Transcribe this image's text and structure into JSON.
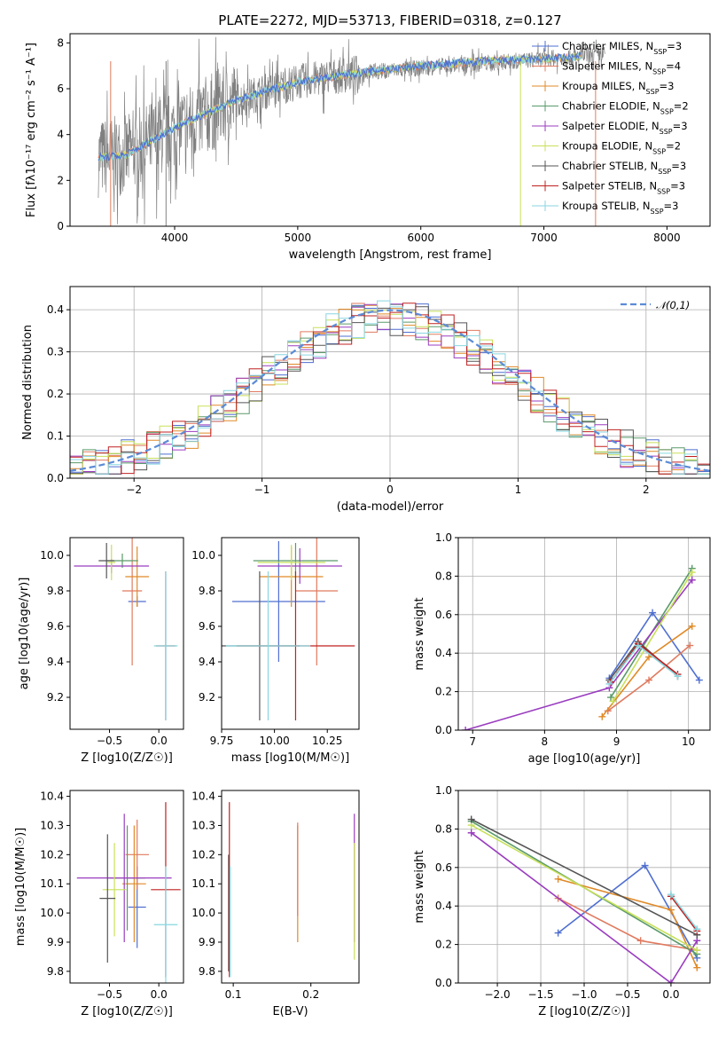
{
  "title": "PLATE=2272, MJD=53713, FIBERID=0318, z=0.127",
  "colors": {
    "Chabrier MILES": "#4f6fd1",
    "Salpeter MILES": "#e07a5f",
    "Kroupa MILES": "#e08a28",
    "Chabrier ELODIE": "#5a9a6a",
    "Salpeter ELODIE": "#9a3dbf",
    "Kroupa ELODIE": "#c8e05a",
    "Chabrier STELIB": "#555555",
    "Salpeter STELIB": "#c02020",
    "Kroupa STELIB": "#88d6e0",
    "data": "#808080",
    "gaussian": "#5b8bd6"
  },
  "chart_data": [
    {
      "id": "spectrum",
      "type": "line",
      "xlabel": "wavelength [Angstrom, rest frame]",
      "ylabel": "Flux [fλ10⁻¹⁷ erg cm⁻² s⁻¹ A⁻¹]",
      "xlim": [
        3150,
        8350
      ],
      "ylim": [
        0,
        8.4
      ],
      "xticks": [
        4000,
        5000,
        6000,
        7000,
        8000
      ],
      "yticks": [
        0,
        2,
        4,
        6,
        8
      ],
      "legend": [
        "Chabrier MILES, N_SSP=3",
        "Salpeter MILES, N_SSP=4",
        "Kroupa MILES, N_SSP=3",
        "Chabrier ELODIE, N_SSP=2",
        "Salpeter ELODIE, N_SSP=3",
        "Kroupa ELODIE, N_SSP=2",
        "Chabrier STELIB, N_SSP=3",
        "Salpeter STELIB, N_SSP=3",
        "Kroupa STELIB, N_SSP=3"
      ],
      "legend_position": "upper-right",
      "data_flux": {
        "x": [
          3380,
          3600,
          3800,
          4000,
          4200,
          4500,
          5000,
          5500,
          6000,
          6500,
          7000,
          7500
        ],
        "y": [
          3.0,
          3.1,
          3.7,
          4.2,
          4.7,
          5.5,
          6.3,
          6.7,
          6.9,
          7.1,
          7.3,
          7.5
        ]
      },
      "model_flux": {
        "x": [
          3380,
          3600,
          3800,
          4000,
          4200,
          4500,
          5000,
          5500,
          6000,
          6500,
          7000,
          7300
        ],
        "y": [
          3.0,
          3.1,
          3.7,
          4.3,
          4.8,
          5.5,
          6.3,
          6.7,
          7.0,
          7.2,
          7.3,
          7.4
        ]
      }
    },
    {
      "id": "residuals",
      "type": "histogram",
      "xlabel": "(data-model)/error",
      "ylabel": "Normed distribution",
      "xlim": [
        -2.5,
        2.5
      ],
      "ylim": [
        0,
        0.455
      ],
      "xticks": [
        -2,
        -1,
        0,
        1,
        2
      ],
      "yticks": [
        0.0,
        0.1,
        0.2,
        0.3,
        0.4
      ],
      "legend": [
        "𝒩(0,1)"
      ],
      "legend_position": "upper-right",
      "grid": true
    },
    {
      "id": "age_vs_Z",
      "type": "errorbar",
      "xlabel": "Z [log10(Z/Z☉)]",
      "ylabel": "age [log10(age/yr)]",
      "xlim": [
        -0.9,
        0.25
      ],
      "ylim": [
        9.02,
        10.1
      ],
      "xticks": [
        -0.5,
        0.0
      ],
      "yticks": [
        9.2,
        9.4,
        9.6,
        9.8,
        10.0
      ],
      "points": [
        {
          "model": "Chabrier MILES",
          "x": -0.22,
          "y": 9.74,
          "xerr": 0.09,
          "yerr": 0.03
        },
        {
          "model": "Salpeter MILES",
          "x": -0.27,
          "y": 9.8,
          "xerr": 0.1,
          "yerr": 0.42
        },
        {
          "model": "Kroupa MILES",
          "x": -0.22,
          "y": 9.88,
          "xerr": 0.12,
          "yerr": 0.17
        },
        {
          "model": "Chabrier ELODIE",
          "x": -0.37,
          "y": 9.97,
          "xerr": 0.16,
          "yerr": 0.04
        },
        {
          "model": "Salpeter ELODIE",
          "x": -0.48,
          "y": 9.94,
          "xerr": 0.38,
          "yerr": 0.04
        },
        {
          "model": "Kroupa ELODIE",
          "x": -0.48,
          "y": 9.96,
          "xerr": 0.04,
          "yerr": 0.1
        },
        {
          "model": "Chabrier STELIB",
          "x": -0.53,
          "y": 9.97,
          "xerr": 0.08,
          "yerr": 0.1
        },
        {
          "model": "Salpeter STELIB",
          "x": 0.07,
          "y": 9.49,
          "xerr": 0.1,
          "yerr": 0.42
        },
        {
          "model": "Kroupa STELIB",
          "x": 0.07,
          "y": 9.49,
          "xerr": 0.12,
          "yerr": 0.42
        }
      ]
    },
    {
      "id": "age_vs_mass",
      "type": "errorbar",
      "xlabel": "mass [log10(M/M☉)]",
      "ylabel": "",
      "xlim": [
        9.75,
        10.4
      ],
      "ylim": [
        9.02,
        10.1
      ],
      "xticks": [
        9.75,
        10.0,
        10.25
      ],
      "yticks": [
        9.2,
        9.4,
        9.6,
        9.8,
        10.0
      ],
      "points": [
        {
          "model": "Chabrier MILES",
          "x": 10.02,
          "y": 9.74,
          "xerr": 0.22,
          "yerr": 0.34
        },
        {
          "model": "Salpeter MILES",
          "x": 10.2,
          "y": 9.8,
          "xerr": 0.1,
          "yerr": 0.42
        },
        {
          "model": "Kroupa MILES",
          "x": 10.08,
          "y": 9.88,
          "xerr": 0.15,
          "yerr": 0.17
        },
        {
          "model": "Chabrier ELODIE",
          "x": 10.1,
          "y": 9.97,
          "xerr": 0.2,
          "yerr": 0.1
        },
        {
          "model": "Salpeter ELODIE",
          "x": 10.12,
          "y": 9.94,
          "xerr": 0.2,
          "yerr": 0.1
        },
        {
          "model": "Kroupa ELODIE",
          "x": 10.08,
          "y": 9.96,
          "xerr": 0.16,
          "yerr": 0.1
        },
        {
          "model": "Chabrier STELIB",
          "x": 9.93,
          "y": 9.49,
          "xerr": 0.19,
          "yerr": 0.42
        },
        {
          "model": "Salpeter STELIB",
          "x": 10.1,
          "y": 9.49,
          "xerr": 0.28,
          "yerr": 0.42
        },
        {
          "model": "Kroupa STELIB",
          "x": 9.97,
          "y": 9.49,
          "xerr": 0.2,
          "yerr": 0.42
        }
      ]
    },
    {
      "id": "weight_vs_age",
      "type": "line",
      "xlabel": "age [log10(age/yr)]",
      "ylabel": "mass weight",
      "xlim": [
        6.8,
        10.3
      ],
      "ylim": [
        0,
        1
      ],
      "xticks": [
        7,
        8,
        9,
        10
      ],
      "yticks": [
        0.0,
        0.2,
        0.4,
        0.6,
        0.8,
        1.0
      ],
      "grid": true,
      "series": [
        {
          "model": "Chabrier MILES",
          "x": [
            8.9,
            9.5,
            10.15
          ],
          "y": [
            0.27,
            0.61,
            0.26
          ]
        },
        {
          "model": "Salpeter MILES",
          "x": [
            8.88,
            9.45,
            10.02
          ],
          "y": [
            0.1,
            0.26,
            0.44
          ]
        },
        {
          "model": "Kroupa MILES",
          "x": [
            8.8,
            9.45,
            10.05
          ],
          "y": [
            0.07,
            0.38,
            0.54
          ]
        },
        {
          "model": "Chabrier ELODIE",
          "x": [
            8.92,
            10.05
          ],
          "y": [
            0.17,
            0.84
          ]
        },
        {
          "model": "Salpeter ELODIE",
          "x": [
            6.9,
            8.9,
            10.05
          ],
          "y": [
            0.0,
            0.22,
            0.78
          ]
        },
        {
          "model": "Kroupa ELODIE",
          "x": [
            8.95,
            10.05
          ],
          "y": [
            0.15,
            0.82
          ]
        },
        {
          "model": "Chabrier STELIB",
          "x": [
            8.9,
            9.3,
            9.85
          ],
          "y": [
            0.26,
            0.46,
            0.28
          ]
        },
        {
          "model": "Salpeter STELIB",
          "x": [
            8.92,
            9.3,
            9.85
          ],
          "y": [
            0.25,
            0.45,
            0.29
          ]
        },
        {
          "model": "Kroupa STELIB",
          "x": [
            8.9,
            9.3,
            9.85
          ],
          "y": [
            0.24,
            0.44,
            0.28
          ]
        }
      ]
    },
    {
      "id": "mass_vs_Z",
      "type": "errorbar",
      "xlabel": "Z [log10(Z/Z☉)]",
      "ylabel": "mass [log10(M/M☉)]",
      "xlim": [
        -0.9,
        0.25
      ],
      "ylim": [
        9.76,
        10.42
      ],
      "xticks": [
        -0.5,
        0.0
      ],
      "yticks": [
        9.8,
        9.9,
        10.0,
        10.1,
        10.2,
        10.3,
        10.4
      ],
      "points": [
        {
          "model": "Chabrier MILES",
          "x": -0.22,
          "y": 10.02,
          "xerr": 0.09,
          "yerr": 0.14
        },
        {
          "model": "Salpeter MILES",
          "x": -0.22,
          "y": 10.2,
          "xerr": 0.12,
          "yerr": 0.12
        },
        {
          "model": "Kroupa MILES",
          "x": -0.25,
          "y": 10.1,
          "xerr": 0.12,
          "yerr": 0.2
        },
        {
          "model": "Chabrier ELODIE",
          "x": -0.32,
          "y": 10.12,
          "xerr": 0.18,
          "yerr": 0.18
        },
        {
          "model": "Salpeter ELODIE",
          "x": -0.35,
          "y": 10.12,
          "xerr": 0.48,
          "yerr": 0.22
        },
        {
          "model": "Kroupa ELODIE",
          "x": -0.45,
          "y": 10.08,
          "xerr": 0.12,
          "yerr": 0.16
        },
        {
          "model": "Chabrier STELIB",
          "x": -0.52,
          "y": 10.05,
          "xerr": 0.08,
          "yerr": 0.22
        },
        {
          "model": "Salpeter STELIB",
          "x": 0.07,
          "y": 10.08,
          "xerr": 0.15,
          "yerr": 0.3
        },
        {
          "model": "Kroupa STELIB",
          "x": 0.07,
          "y": 9.96,
          "xerr": 0.12,
          "yerr": 0.2
        }
      ]
    },
    {
      "id": "mass_vs_ebv",
      "type": "errorbar",
      "xlabel": "E(B-V)",
      "ylabel": "",
      "xlim": [
        0.085,
        0.262
      ],
      "ylim": [
        9.76,
        10.42
      ],
      "xticks": [
        0.1,
        0.2
      ],
      "yticks": [
        9.8,
        9.9,
        10.0,
        10.1,
        10.2,
        10.3,
        10.4
      ],
      "points": [
        {
          "model": "Chabrier STELIB",
          "x": 0.094,
          "y": 10.0,
          "yerr": 0.2
        },
        {
          "model": "Salpeter STELIB",
          "x": 0.095,
          "y": 10.08,
          "yerr": 0.3
        },
        {
          "model": "Kroupa STELIB",
          "x": 0.096,
          "y": 9.97,
          "yerr": 0.19
        },
        {
          "model": "Kroupa MILES",
          "x": 0.183,
          "y": 10.1,
          "yerr": 0.2
        },
        {
          "model": "Salpeter MILES",
          "x": 0.183,
          "y": 10.15,
          "yerr": 0.16
        },
        {
          "model": "Salpeter ELODIE",
          "x": 0.256,
          "y": 10.12,
          "yerr": 0.22
        },
        {
          "model": "Kroupa ELODIE",
          "x": 0.256,
          "y": 10.04,
          "yerr": 0.2
        }
      ]
    },
    {
      "id": "weight_vs_Z",
      "type": "line",
      "xlabel": "Z [log10(Z/Z☉)]",
      "ylabel": "mass weight",
      "xlim": [
        -2.45,
        0.45
      ],
      "ylim": [
        0,
        1
      ],
      "xticks": [
        -2.0,
        -1.5,
        -1.0,
        -0.5,
        0.0
      ],
      "yticks": [
        0.0,
        0.2,
        0.4,
        0.6,
        0.8,
        1.0
      ],
      "grid": true,
      "series": [
        {
          "model": "Chabrier MILES",
          "x": [
            -1.3,
            -0.3,
            0.3
          ],
          "y": [
            0.26,
            0.61,
            0.13
          ]
        },
        {
          "model": "Salpeter MILES",
          "x": [
            -1.3,
            -0.35,
            0.3
          ],
          "y": [
            0.44,
            0.22,
            0.17
          ]
        },
        {
          "model": "Kroupa MILES",
          "x": [
            -1.3,
            0.0,
            0.3
          ],
          "y": [
            0.54,
            0.38,
            0.08
          ]
        },
        {
          "model": "Chabrier ELODIE",
          "x": [
            -2.3,
            0.3
          ],
          "y": [
            0.84,
            0.15
          ]
        },
        {
          "model": "Salpeter ELODIE",
          "x": [
            -2.3,
            0.0,
            0.3
          ],
          "y": [
            0.78,
            0.0,
            0.22
          ]
        },
        {
          "model": "Kroupa ELODIE",
          "x": [
            -2.3,
            0.3
          ],
          "y": [
            0.82,
            0.17
          ]
        },
        {
          "model": "Chabrier STELIB",
          "x": [
            -2.3,
            0.3
          ],
          "y": [
            0.85,
            0.25
          ]
        },
        {
          "model": "Salpeter STELIB",
          "x": [
            0.0,
            0.3
          ],
          "y": [
            0.45,
            0.27
          ]
        },
        {
          "model": "Kroupa STELIB",
          "x": [
            0.0,
            0.3
          ],
          "y": [
            0.46,
            0.28
          ]
        }
      ]
    }
  ]
}
